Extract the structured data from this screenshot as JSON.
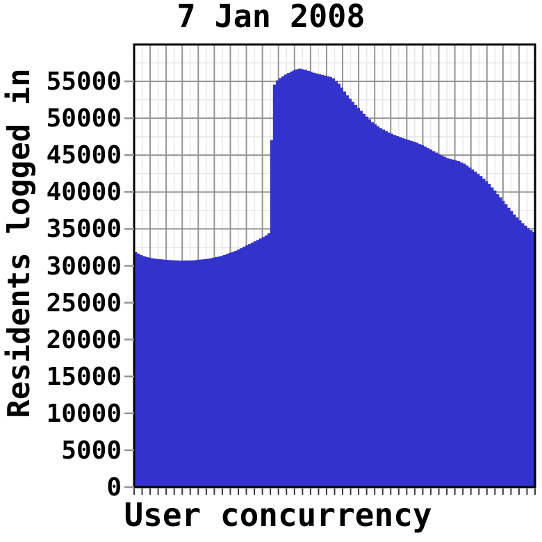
{
  "chart_data": {
    "type": "area",
    "title": "7 Jan 2008",
    "xlabel": "User concurrency",
    "ylabel": "Residents logged in",
    "ylim": [
      0,
      60000
    ],
    "y_ticks": [
      0,
      5000,
      10000,
      15000,
      20000,
      25000,
      30000,
      35000,
      40000,
      45000,
      50000,
      55000
    ],
    "y_minor_interval": 2500,
    "x_gridline_intervals": 25,
    "x_minor_tick_intervals": 50,
    "grid": true,
    "legend_position": "none",
    "colors": {
      "area": "#3333cc",
      "grid_major": "#949494",
      "grid_minor": "#e8e8e8",
      "frame": "#000000",
      "axis_tick": "#3a3a3a",
      "text": "#000000",
      "plot_background": "#ffffff"
    },
    "series": [
      {
        "name": "Residents logged in",
        "points": [
          [
            0.0,
            31900
          ],
          [
            0.021,
            31300
          ],
          [
            0.047,
            30950
          ],
          [
            0.081,
            30750
          ],
          [
            0.116,
            30650
          ],
          [
            0.151,
            30700
          ],
          [
            0.185,
            30900
          ],
          [
            0.22,
            31300
          ],
          [
            0.255,
            32000
          ],
          [
            0.281,
            32700
          ],
          [
            0.307,
            33400
          ],
          [
            0.328,
            34000
          ],
          [
            0.34,
            34500
          ],
          [
            0.342,
            44000
          ],
          [
            0.348,
            54300
          ],
          [
            0.359,
            55200
          ],
          [
            0.376,
            55800
          ],
          [
            0.393,
            56300
          ],
          [
            0.411,
            56700
          ],
          [
            0.428,
            56500
          ],
          [
            0.449,
            56100
          ],
          [
            0.471,
            55800
          ],
          [
            0.494,
            55500
          ],
          [
            0.511,
            54600
          ],
          [
            0.532,
            53000
          ],
          [
            0.553,
            51700
          ],
          [
            0.574,
            50500
          ],
          [
            0.594,
            49400
          ],
          [
            0.615,
            48600
          ],
          [
            0.636,
            48000
          ],
          [
            0.657,
            47500
          ],
          [
            0.679,
            47100
          ],
          [
            0.702,
            46700
          ],
          [
            0.723,
            46200
          ],
          [
            0.743,
            45600
          ],
          [
            0.764,
            45000
          ],
          [
            0.783,
            44500
          ],
          [
            0.806,
            44200
          ],
          [
            0.823,
            43800
          ],
          [
            0.844,
            43000
          ],
          [
            0.865,
            42100
          ],
          [
            0.886,
            41000
          ],
          [
            0.906,
            39700
          ],
          [
            0.927,
            38300
          ],
          [
            0.948,
            36900
          ],
          [
            0.969,
            35700
          ],
          [
            0.986,
            34900
          ],
          [
            1.0,
            34400
          ]
        ]
      }
    ]
  }
}
